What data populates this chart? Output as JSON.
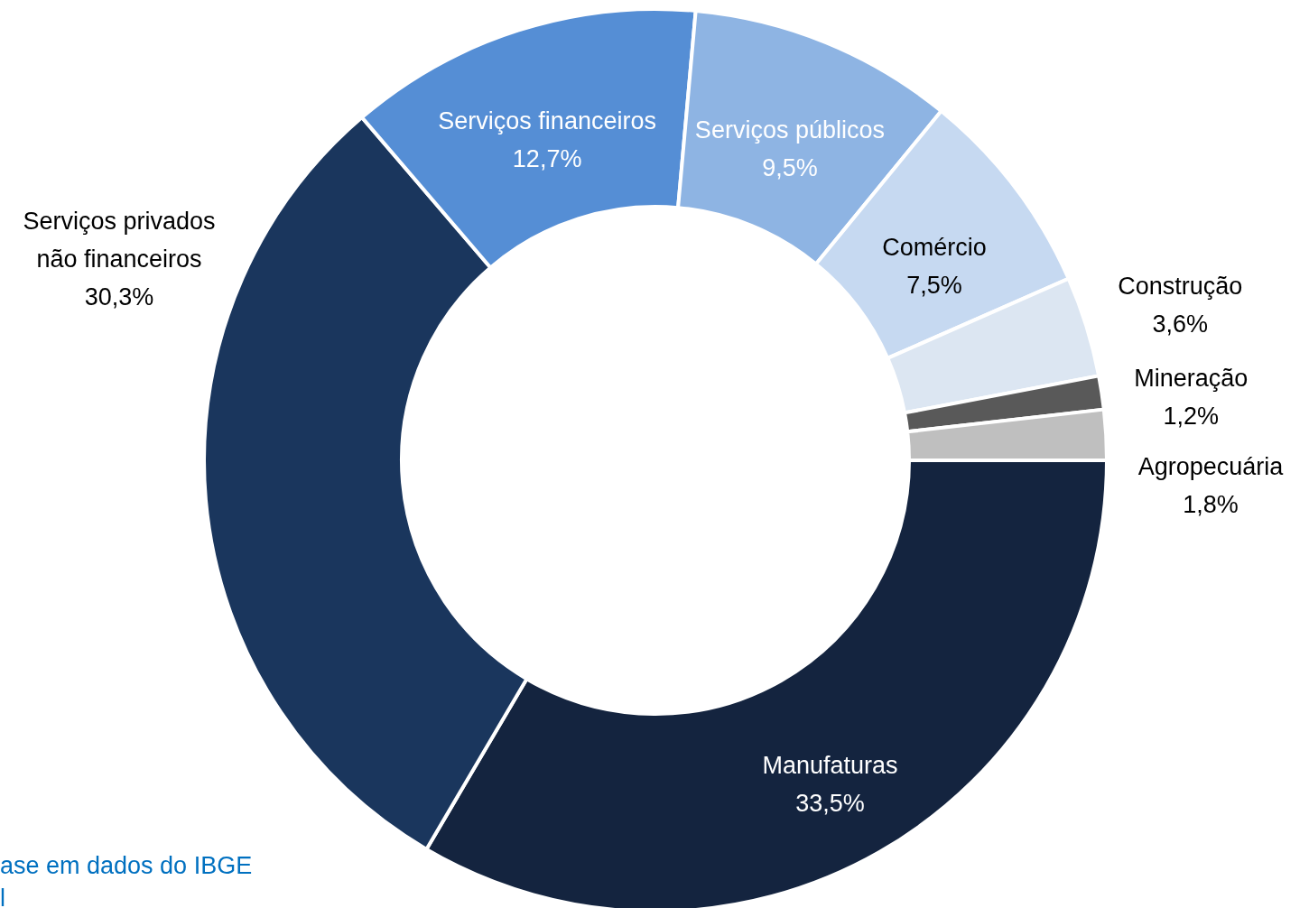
{
  "chart_data": {
    "type": "donut",
    "categories": [
      "Manufaturas",
      "Serviços privados não financeiros",
      "Serviços financeiros",
      "Serviços públicos",
      "Comércio",
      "Construção",
      "Mineração",
      "Agropecuária"
    ],
    "values": [
      33.5,
      30.3,
      12.7,
      9.5,
      7.5,
      3.6,
      1.2,
      1.8
    ],
    "value_labels": [
      "33,5%",
      "30,3%",
      "12,7%",
      "9,5%",
      "7,5%",
      "3,6%",
      "1,2%",
      "1,8%"
    ],
    "colors": [
      "#14243f",
      "#1a365d",
      "#558ed5",
      "#8eb4e3",
      "#c6d9f1",
      "#dce6f2",
      "#595959",
      "#bfbfbf"
    ],
    "annotations": [
      "ase em dados do IBGE",
      "l"
    ]
  }
}
